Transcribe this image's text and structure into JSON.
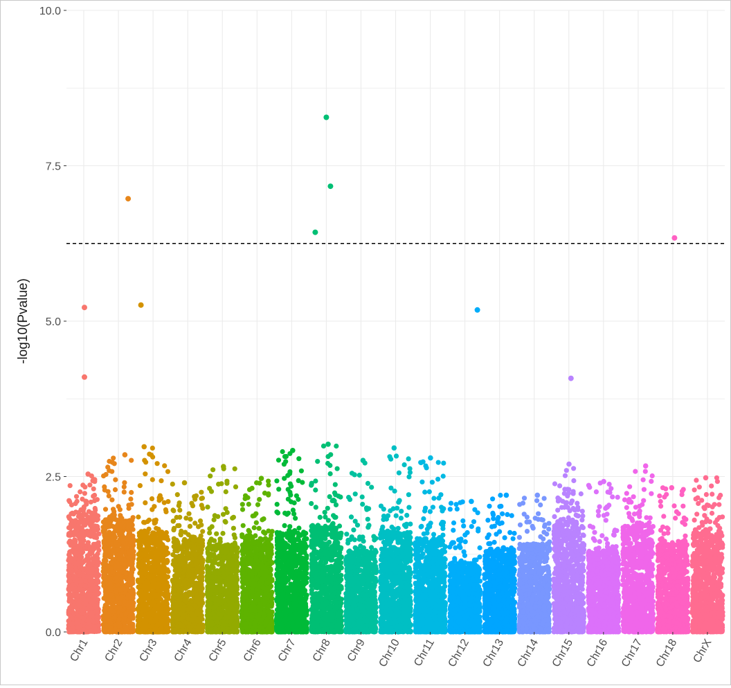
{
  "chart_data": {
    "type": "scatter",
    "title": "",
    "xlabel": "",
    "ylabel": "-log10(Pvalue)",
    "ylim": [
      0,
      10
    ],
    "yticks": [
      "0.0",
      "2.5",
      "5.0",
      "7.5",
      "10.0"
    ],
    "ytick_values": [
      0,
      2.5,
      5,
      7.5,
      10
    ],
    "threshold": 6.25,
    "grid": true,
    "legend": "none",
    "categories": [
      "Chr1",
      "Chr2",
      "Chr3",
      "Chr4",
      "Chr5",
      "Chr6",
      "Chr7",
      "Chr8",
      "Chr9",
      "Chr10",
      "Chr11",
      "Chr12",
      "Chr13",
      "Chr14",
      "Chr15",
      "Chr16",
      "Chr17",
      "Chr18",
      "ChrX"
    ],
    "colors": [
      "#F8766D",
      "#E7861B",
      "#D39200",
      "#B79F00",
      "#93AA00",
      "#5EB300",
      "#00BA38",
      "#00BF74",
      "#00C19F",
      "#00BFC4",
      "#00B9E3",
      "#00ADFA",
      "#00A5FF",
      "#7997FF",
      "#B983FF",
      "#DC71FA",
      "#F066EA",
      "#FF61C3",
      "#FF6C90"
    ],
    "notable_points": [
      {
        "chr": "Chr1",
        "pos": 0.52,
        "y": 5.22
      },
      {
        "chr": "Chr1",
        "pos": 0.52,
        "y": 4.1
      },
      {
        "chr": "Chr2",
        "pos": 0.78,
        "y": 6.97
      },
      {
        "chr": "Chr3",
        "pos": 0.15,
        "y": 5.26
      },
      {
        "chr": "Chr8",
        "pos": 0.18,
        "y": 6.43
      },
      {
        "chr": "Chr8",
        "pos": 0.5,
        "y": 8.28
      },
      {
        "chr": "Chr8",
        "pos": 0.62,
        "y": 7.17
      },
      {
        "chr": "Chr12",
        "pos": 0.86,
        "y": 5.18
      },
      {
        "chr": "Chr15",
        "pos": 0.56,
        "y": 4.08
      },
      {
        "chr": "Chr18",
        "pos": 0.55,
        "y": 6.34
      }
    ],
    "background_envelope": {
      "description": "dense band of points per chromosome",
      "dense_max": [
        1.9,
        1.8,
        1.6,
        1.5,
        1.4,
        1.5,
        1.6,
        1.7,
        1.3,
        1.6,
        1.5,
        1.1,
        1.3,
        1.4,
        1.8,
        1.3,
        1.7,
        1.4,
        1.6
      ],
      "peak_max": [
        2.54,
        2.85,
        2.98,
        2.4,
        2.66,
        2.47,
        2.92,
        3.02,
        2.76,
        2.96,
        2.8,
        2.1,
        2.2,
        2.2,
        2.7,
        2.42,
        2.67,
        2.32,
        2.48
      ]
    }
  }
}
